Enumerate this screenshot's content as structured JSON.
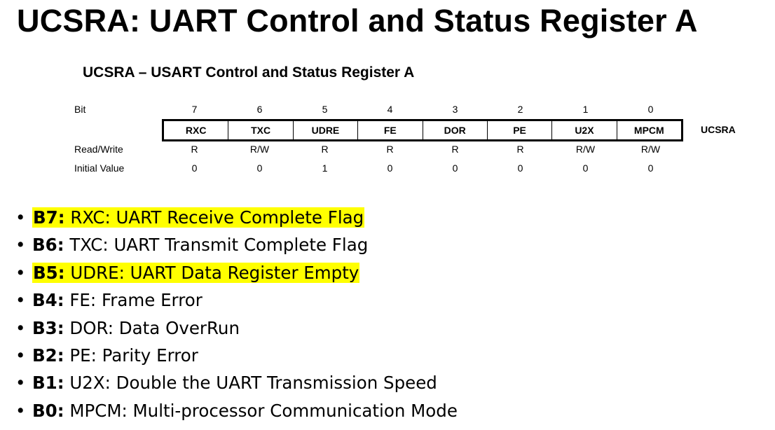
{
  "slide_title": "UCSRA: UART Control and Status Register A",
  "register": {
    "heading": "UCSRA – USART Control and Status Register A",
    "bit_label": "Bit",
    "rw_label": "Read/Write",
    "init_label": "Initial Value",
    "name": "UCSRA",
    "bits": [
      {
        "bit": "7",
        "name": "RXC",
        "rw": "R",
        "init": "0"
      },
      {
        "bit": "6",
        "name": "TXC",
        "rw": "R/W",
        "init": "0"
      },
      {
        "bit": "5",
        "name": "UDRE",
        "rw": "R",
        "init": "1"
      },
      {
        "bit": "4",
        "name": "FE",
        "rw": "R",
        "init": "0"
      },
      {
        "bit": "3",
        "name": "DOR",
        "rw": "R",
        "init": "0"
      },
      {
        "bit": "2",
        "name": "PE",
        "rw": "R",
        "init": "0"
      },
      {
        "bit": "1",
        "name": "U2X",
        "rw": "R/W",
        "init": "0"
      },
      {
        "bit": "0",
        "name": "MPCM",
        "rw": "R/W",
        "init": "0"
      }
    ]
  },
  "bullet_glyph": "•",
  "highlight_color": "#ffff00",
  "bullets": [
    {
      "tag": "B7:",
      "text": "RXC: UART Receive Complete Flag",
      "highlighted": true
    },
    {
      "tag": "B6:",
      "text": "TXC: UART Transmit Complete Flag",
      "highlighted": false
    },
    {
      "tag": "B5:",
      "text": "UDRE: UART Data Register Empty",
      "highlighted": true
    },
    {
      "tag": "B4:",
      "text": "FE: Frame Error",
      "highlighted": false
    },
    {
      "tag": "B3:",
      "text": "DOR: Data OverRun",
      "highlighted": false
    },
    {
      "tag": "B2:",
      "text": "PE: Parity Error",
      "highlighted": false
    },
    {
      "tag": "B1:",
      "text": "U2X: Double the UART Transmission Speed",
      "highlighted": false
    },
    {
      "tag": "B0:",
      "text": "MPCM: Multi-processor Communication Mode",
      "highlighted": false
    }
  ]
}
